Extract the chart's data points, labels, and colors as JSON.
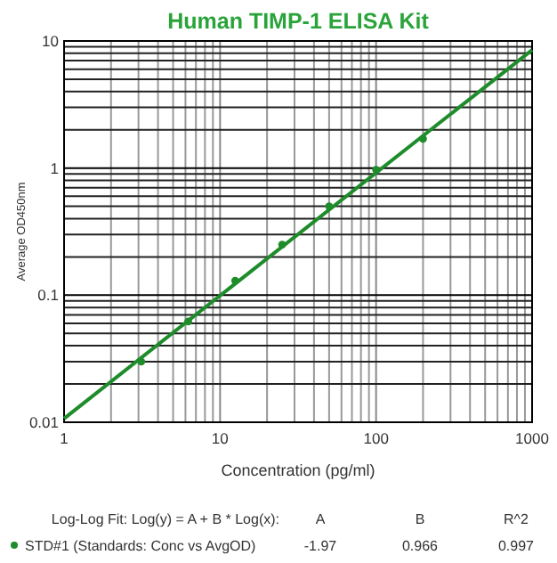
{
  "chart_data": {
    "type": "scatter",
    "title": "Human TIMP-1 ELISA Kit",
    "xlabel": "Concentration (pg/ml)",
    "ylabel": "Average OD450nm",
    "log": "xy",
    "grid": true,
    "legend": "bottom",
    "line_style": "solid",
    "xlim": [
      1,
      1000
    ],
    "ylim": [
      0.01,
      10
    ],
    "xticks": [
      1,
      {
        "value": 2,
        "label": null
      },
      {
        "value": 3,
        "label": null
      },
      {
        "value": 4,
        "label": null
      },
      {
        "value": 5,
        "label": null
      },
      {
        "value": 6,
        "label": null
      },
      {
        "value": 7,
        "label": null
      },
      {
        "value": 8,
        "label": null
      },
      {
        "value": 9,
        "label": null
      },
      10,
      {
        "value": 20,
        "label": null
      },
      {
        "value": 30,
        "label": null
      },
      {
        "value": 40,
        "label": null
      },
      {
        "value": 50,
        "label": null
      },
      {
        "value": 60,
        "label": null
      },
      {
        "value": 70,
        "label": null
      },
      {
        "value": 80,
        "label": null
      },
      {
        "value": 90,
        "label": null
      },
      100,
      {
        "value": 200,
        "label": null
      },
      {
        "value": 300,
        "label": null
      },
      {
        "value": 400,
        "label": null
      },
      {
        "value": 500,
        "label": null
      },
      {
        "value": 600,
        "label": null
      },
      {
        "value": 700,
        "label": null
      },
      {
        "value": 800,
        "label": null
      },
      {
        "value": 900,
        "label": null
      },
      1000
    ],
    "yticks": [
      0.01,
      {
        "value": 0.02,
        "label": null
      },
      {
        "value": 0.03,
        "label": null
      },
      {
        "value": 0.04,
        "label": null
      },
      {
        "value": 0.05,
        "label": null
      },
      {
        "value": 0.06,
        "label": null
      },
      {
        "value": 0.07,
        "label": null
      },
      {
        "value": 0.08,
        "label": null
      },
      {
        "value": 0.09,
        "label": null
      },
      0.1,
      {
        "value": 0.2,
        "label": null
      },
      {
        "value": 0.3,
        "label": null
      },
      {
        "value": 0.4,
        "label": null
      },
      {
        "value": 0.5,
        "label": null
      },
      {
        "value": 0.6,
        "label": null
      },
      {
        "value": 0.7,
        "label": null
      },
      {
        "value": 0.8,
        "label": null
      },
      {
        "value": 0.9,
        "label": null
      },
      1,
      {
        "value": 2,
        "label": null
      },
      {
        "value": 3,
        "label": null
      },
      {
        "value": 4,
        "label": null
      },
      {
        "value": 5,
        "label": null
      },
      {
        "value": 6,
        "label": null
      },
      {
        "value": 7,
        "label": null
      },
      {
        "value": 8,
        "label": null
      },
      {
        "value": 9,
        "label": null
      },
      10
    ],
    "series": [
      {
        "name": "STD#1 (Standards: Conc vs AvgOD)",
        "color": "#1e8c2a",
        "marker": "circle",
        "x": [
          3.125,
          6.25,
          12.5,
          25,
          50,
          100,
          200
        ],
        "values": [
          0.03,
          0.062,
          0.13,
          0.25,
          0.5,
          0.97,
          1.7
        ]
      },
      {
        "type": "line",
        "marker": "none",
        "color": "#1e8c2a",
        "x": [
          1,
          1000
        ],
        "values": [
          0.0107,
          8.5
        ]
      }
    ],
    "annotations": [
      "Log-Log Fit: Log(y) = A + B * Log(x):",
      "A",
      "B",
      "R^2",
      "-1.97",
      "0.966",
      "0.997"
    ]
  }
}
